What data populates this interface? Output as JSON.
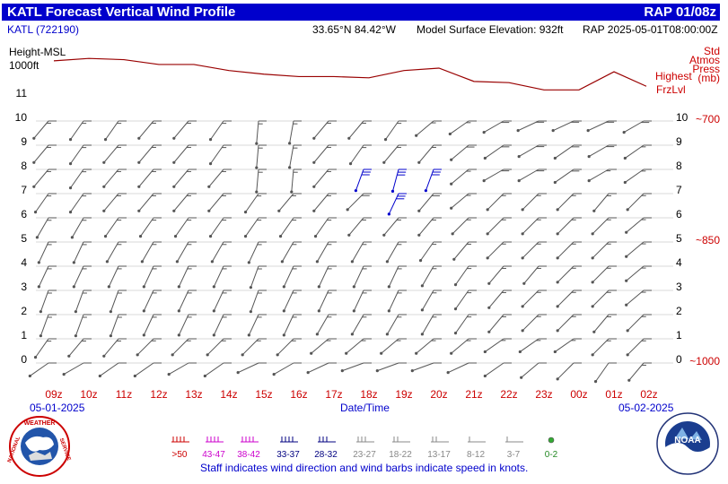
{
  "title": {
    "left": "KATL Forecast Vertical Wind Profile",
    "right": "RAP 01/08z"
  },
  "info": {
    "station": "KATL (722190)",
    "coords": "33.65°N  84.42°W",
    "elevation": "Model Surface Elevation: 932ft",
    "model": "RAP  2025-05-01T08:00:00Z"
  },
  "chart_data": {
    "type": "wind_barb_profile",
    "ylabel_lines": [
      "Height-MSL",
      "1000ft"
    ],
    "xlabel": "Date/Time",
    "date_start": "05-01-2025",
    "date_end": "05-02-2025",
    "times": [
      "09z",
      "10z",
      "11z",
      "12z",
      "13z",
      "14z",
      "15z",
      "16z",
      "17z",
      "18z",
      "19z",
      "20z",
      "21z",
      "22z",
      "23z",
      "00z",
      "01z",
      "02z"
    ],
    "height_ticks_left": [
      "0",
      "1",
      "2",
      "3",
      "4",
      "5",
      "6",
      "7",
      "8",
      "9",
      "10",
      "11"
    ],
    "height_ticks_right": [
      "0",
      "1",
      "2",
      "3",
      "4",
      "5",
      "6",
      "7",
      "8",
      "9",
      "10"
    ],
    "ylim": [
      0,
      11
    ],
    "pressure_label_lines": [
      "Std",
      "Atmos",
      "Press",
      "(mb)"
    ],
    "pressure_ticks": [
      {
        "height": 0,
        "label": "~1000"
      },
      {
        "height": 5,
        "label": "~850"
      },
      {
        "height": 10,
        "label": "~700"
      }
    ],
    "freezing_level_label_lines": [
      "Highest",
      "FrzLvl"
    ],
    "freezing_level_height": [
      12.3,
      12.4,
      12.35,
      12.15,
      12.15,
      11.9,
      11.75,
      11.65,
      11.65,
      11.6,
      11.9,
      12.0,
      11.45,
      11.4,
      11.1,
      11.1,
      11.85,
      11.25
    ],
    "wind_direction_deg": [
      [
        235,
        240,
        235,
        235,
        240,
        235,
        245,
        240,
        245,
        250,
        250,
        250,
        245,
        235,
        230,
        225,
        215,
        220
      ],
      [
        215,
        220,
        220,
        225,
        225,
        225,
        225,
        225,
        230,
        230,
        230,
        230,
        230,
        235,
        235,
        235,
        225,
        225
      ],
      [
        200,
        200,
        200,
        205,
        205,
        205,
        205,
        205,
        210,
        210,
        210,
        210,
        215,
        220,
        225,
        225,
        220,
        225
      ],
      [
        200,
        200,
        200,
        205,
        205,
        205,
        200,
        205,
        205,
        205,
        205,
        210,
        215,
        220,
        225,
        225,
        225,
        230
      ],
      [
        205,
        205,
        205,
        205,
        205,
        205,
        200,
        205,
        205,
        205,
        205,
        210,
        215,
        220,
        220,
        225,
        225,
        230
      ],
      [
        205,
        205,
        210,
        210,
        210,
        210,
        205,
        210,
        210,
        210,
        210,
        215,
        220,
        225,
        225,
        225,
        225,
        230
      ],
      [
        210,
        210,
        215,
        215,
        215,
        215,
        215,
        215,
        215,
        220,
        220,
        220,
        225,
        225,
        225,
        225,
        225,
        230
      ],
      [
        215,
        215,
        220,
        220,
        220,
        220,
        215,
        220,
        220,
        225,
        205,
        220,
        230,
        225,
        225,
        225,
        220,
        225
      ],
      [
        220,
        215,
        220,
        220,
        220,
        220,
        185,
        185,
        220,
        200,
        195,
        200,
        230,
        240,
        240,
        235,
        240,
        235
      ],
      [
        220,
        215,
        220,
        220,
        220,
        215,
        185,
        190,
        220,
        215,
        220,
        220,
        230,
        235,
        240,
        235,
        240,
        235
      ],
      [
        220,
        215,
        215,
        220,
        220,
        215,
        185,
        190,
        220,
        220,
        215,
        230,
        235,
        240,
        245,
        245,
        245,
        240
      ]
    ],
    "wind_speed_kt": [
      [
        10,
        10,
        10,
        10,
        10,
        10,
        10,
        10,
        10,
        10,
        10,
        10,
        10,
        10,
        10,
        10,
        10,
        15
      ],
      [
        15,
        15,
        15,
        15,
        15,
        15,
        15,
        15,
        15,
        15,
        15,
        15,
        15,
        15,
        15,
        15,
        15,
        15
      ],
      [
        15,
        15,
        15,
        15,
        15,
        15,
        15,
        15,
        15,
        15,
        15,
        15,
        15,
        15,
        15,
        15,
        15,
        15
      ],
      [
        15,
        15,
        15,
        15,
        15,
        15,
        15,
        15,
        15,
        15,
        15,
        15,
        15,
        15,
        15,
        15,
        15,
        15
      ],
      [
        15,
        15,
        15,
        15,
        15,
        15,
        15,
        15,
        15,
        15,
        15,
        15,
        15,
        15,
        15,
        15,
        15,
        15
      ],
      [
        15,
        15,
        15,
        15,
        15,
        15,
        15,
        15,
        15,
        15,
        15,
        15,
        15,
        15,
        15,
        15,
        15,
        15
      ],
      [
        15,
        15,
        15,
        15,
        15,
        15,
        15,
        15,
        15,
        15,
        15,
        15,
        15,
        15,
        15,
        15,
        15,
        15
      ],
      [
        15,
        15,
        15,
        15,
        15,
        15,
        15,
        15,
        15,
        20,
        30,
        20,
        15,
        15,
        15,
        15,
        15,
        15
      ],
      [
        15,
        15,
        15,
        15,
        15,
        15,
        15,
        15,
        15,
        30,
        30,
        30,
        15,
        20,
        20,
        20,
        15,
        15
      ],
      [
        15,
        15,
        15,
        15,
        15,
        15,
        15,
        15,
        15,
        15,
        15,
        15,
        20,
        20,
        20,
        20,
        20,
        15
      ],
      [
        15,
        15,
        15,
        15,
        15,
        15,
        15,
        15,
        15,
        15,
        15,
        15,
        15,
        20,
        20,
        20,
        20,
        20
      ]
    ],
    "legend": [
      {
        "label": ">50",
        "color": "#cc0000"
      },
      {
        "label": "43-47",
        "color": "#cc00cc"
      },
      {
        "label": "38-42",
        "color": "#cc00cc"
      },
      {
        "label": "33-37",
        "color": "#000080"
      },
      {
        "label": "28-32",
        "color": "#000080"
      },
      {
        "label": "23-27",
        "color": "#888888"
      },
      {
        "label": "18-22",
        "color": "#888888"
      },
      {
        "label": "13-17",
        "color": "#888888"
      },
      {
        "label": "8-12",
        "color": "#888888"
      },
      {
        "label": "3-7",
        "color": "#888888"
      },
      {
        "label": "0-2",
        "color": "#228822"
      }
    ],
    "note": "Staff indicates wind direction and wind barbs indicate speed in knots."
  },
  "logos": {
    "left": "NATIONAL WEATHER SERVICE",
    "right": "NOAA"
  },
  "colors": {
    "title_bg": "#0000cc",
    "axis_red": "#cc0000",
    "barb": "#555555",
    "grid": "#d8d8d8"
  }
}
